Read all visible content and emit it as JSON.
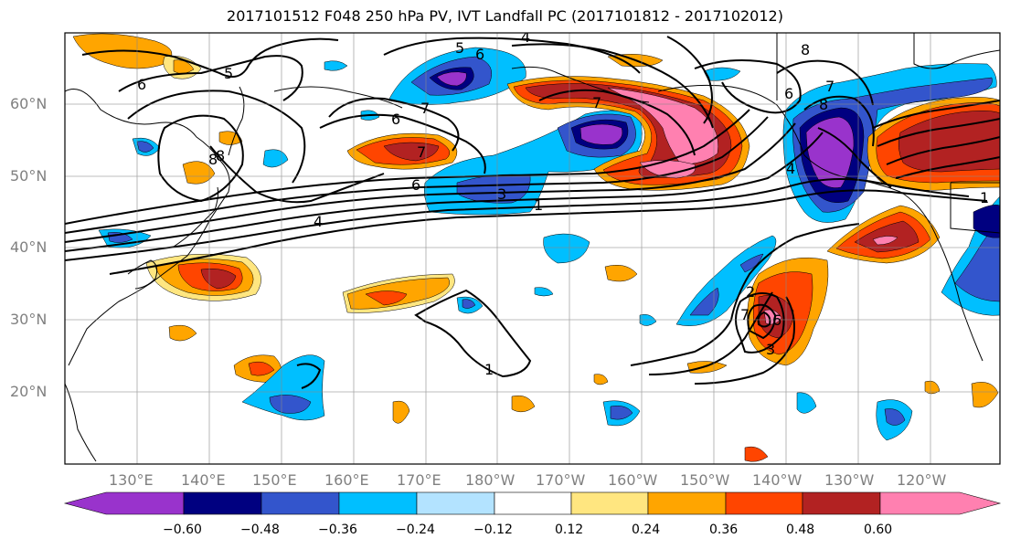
{
  "title": "2017101512 F048 250 hPa PV, IVT Landfall PC (2017101812 - 2017102012)",
  "axes": {
    "lon_labels": [
      "130°E",
      "140°E",
      "150°E",
      "160°E",
      "170°E",
      "180°W",
      "170°W",
      "160°W",
      "150°W",
      "140°W",
      "130°W",
      "120°W"
    ],
    "lat_labels": [
      "60°N",
      "50°N",
      "40°N",
      "30°N",
      "20°N"
    ]
  },
  "colorbar": {
    "tick_labels": [
      "−0.60",
      "−0.48",
      "−0.36",
      "−0.24",
      "−0.12",
      "0.12",
      "0.24",
      "0.36",
      "0.48",
      "0.60"
    ],
    "colors": [
      "#9933cc",
      "#000080",
      "#3355cc",
      "#00bfff",
      "#b3e3ff",
      "#ffffff",
      "#ffe680",
      "#ffa500",
      "#ff4500",
      "#b22222",
      "#ff80b0"
    ]
  },
  "contour_labels": [
    "4",
    "5",
    "6",
    "5",
    "6",
    "7",
    "6",
    "7",
    "8",
    "6",
    "8",
    "7",
    "8",
    "6",
    "7",
    "4",
    "3",
    "1",
    "4",
    "3",
    "2",
    "7",
    "6",
    "1",
    "8",
    "1"
  ],
  "colors": {
    "purple": "#9933cc",
    "navy": "#000080",
    "blue": "#3355cc",
    "cyan": "#00bfff",
    "lightblue": "#b3e3ff",
    "yellow": "#ffe680",
    "orange": "#ffa500",
    "redorange": "#ff4500",
    "firebrick": "#b22222",
    "pink": "#ff80b0"
  }
}
